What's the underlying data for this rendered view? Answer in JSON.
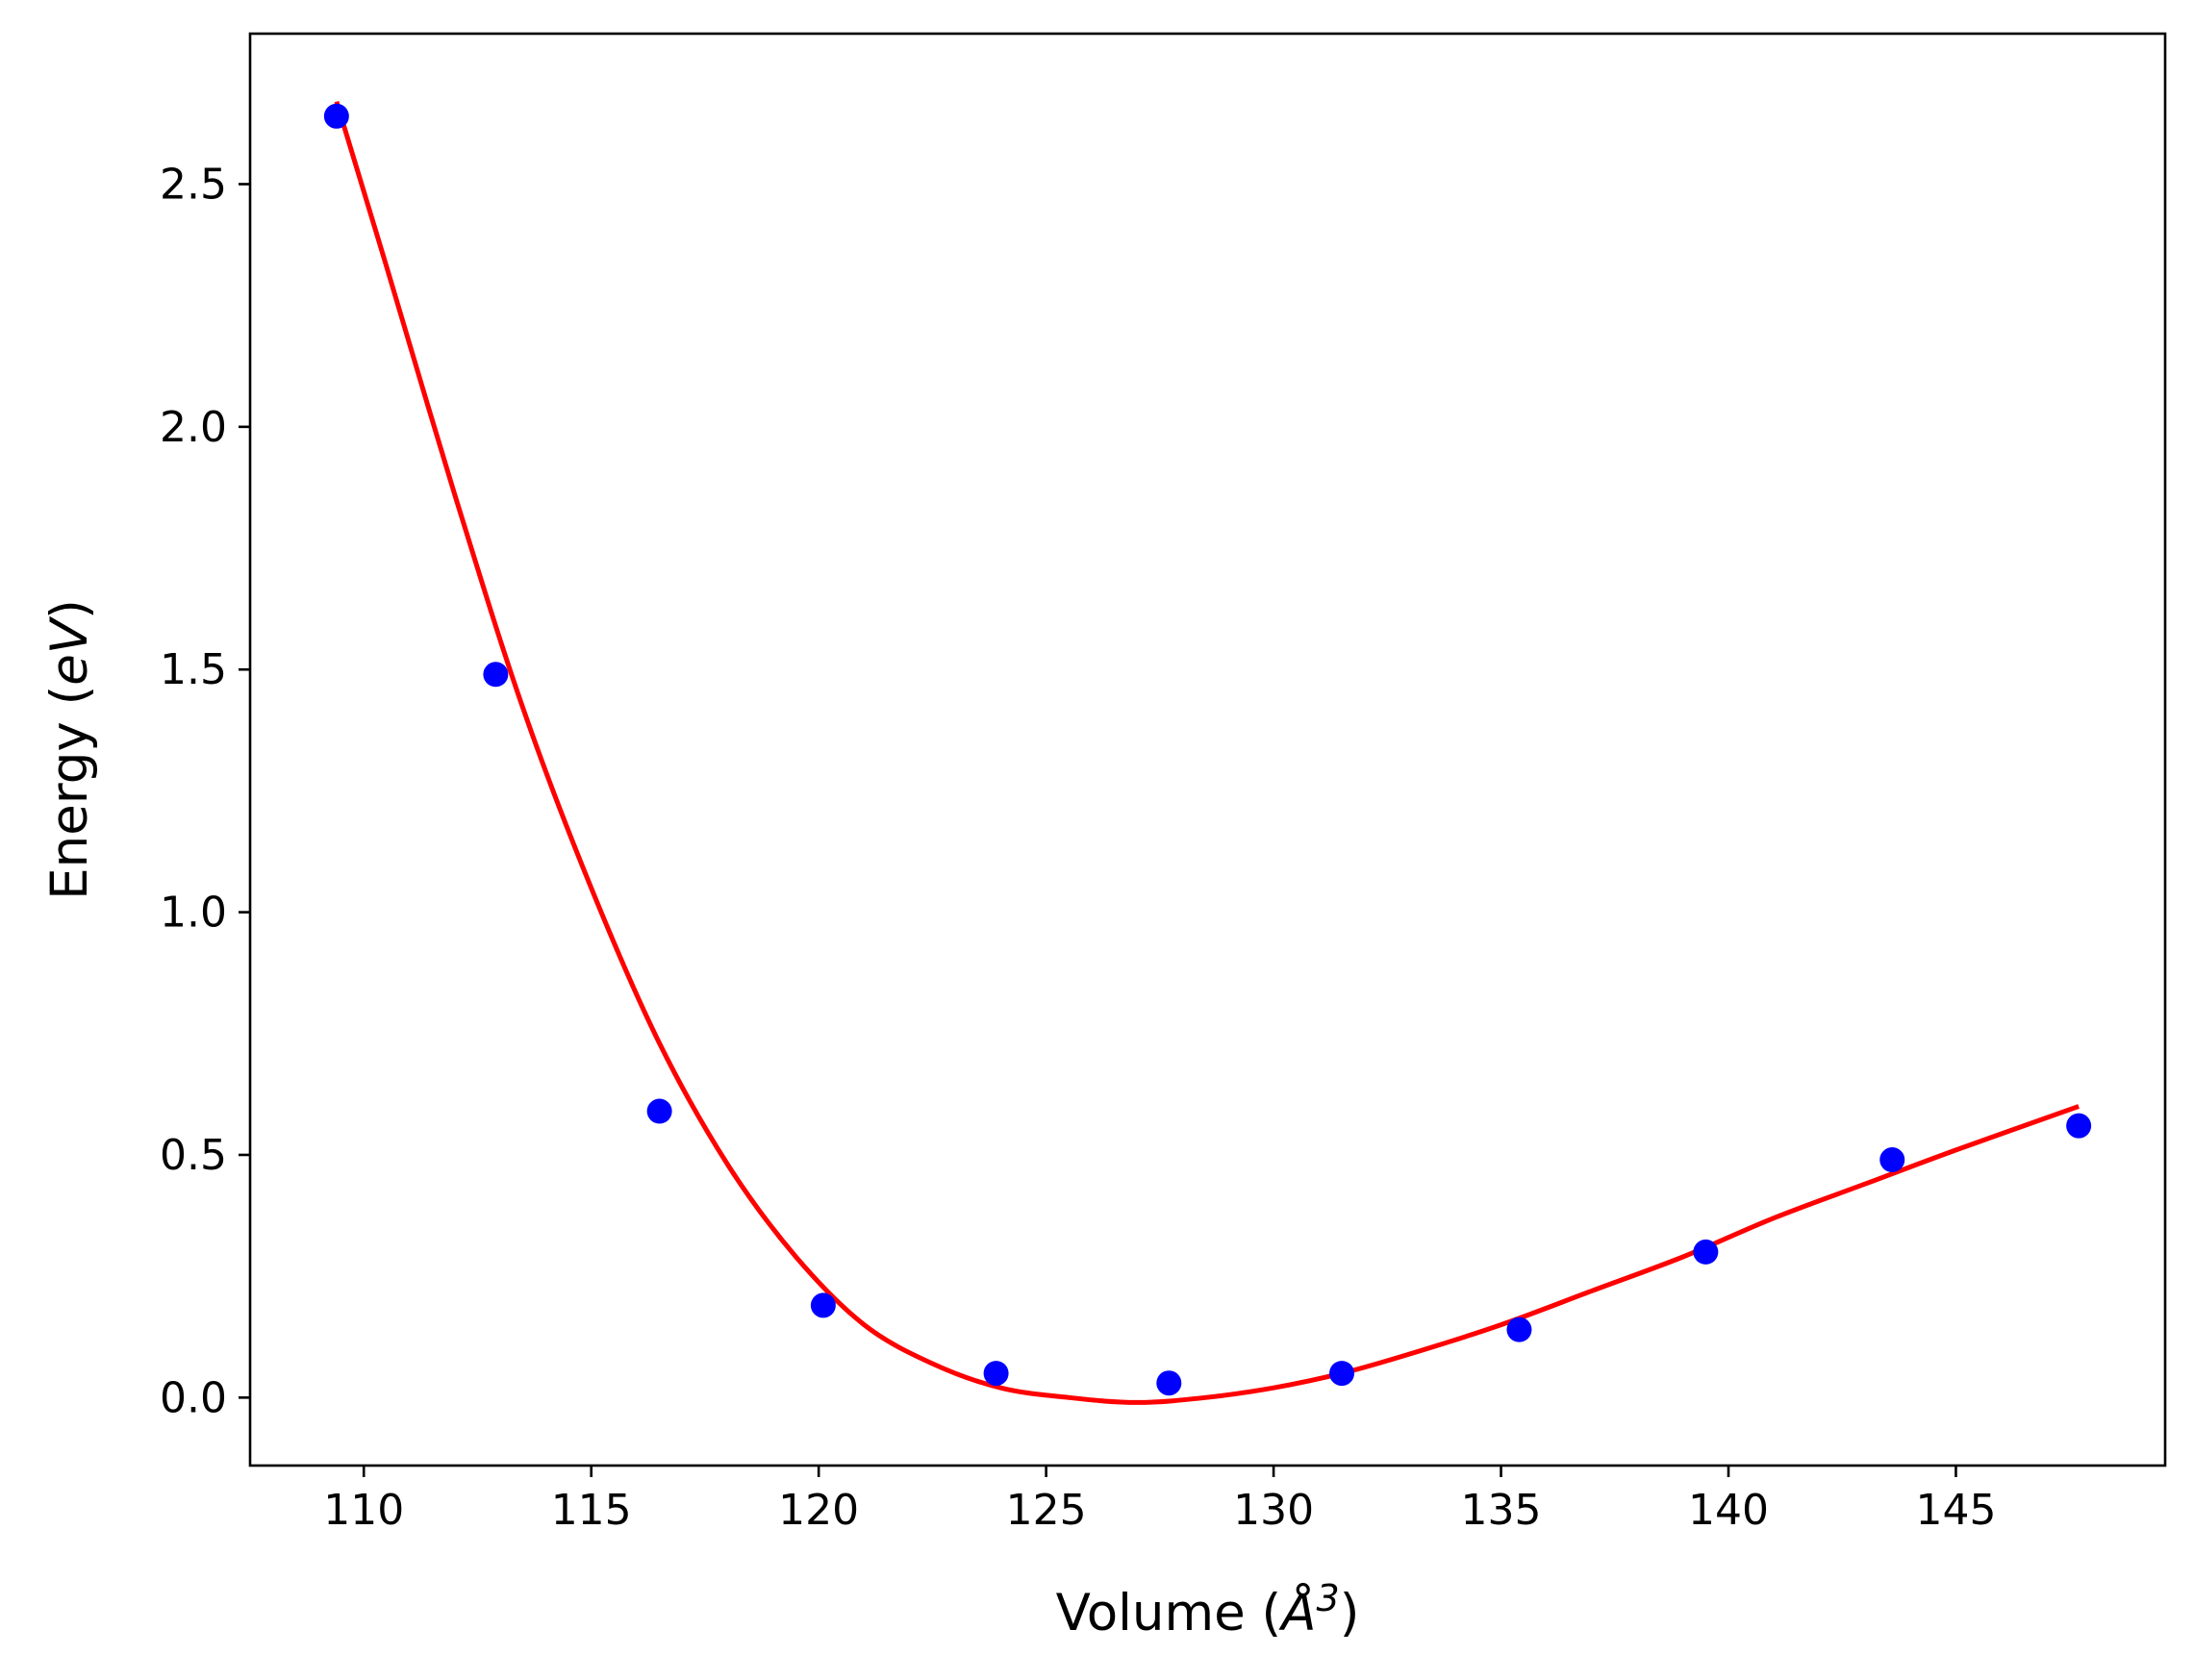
{
  "chart_data": {
    "type": "scatter",
    "xlabel_prefix": "Volume (",
    "xlabel_unit": "Å",
    "xlabel_power": "3",
    "xlabel_suffix": ")",
    "ylabel_prefix": "Energy (",
    "ylabel_unit": "eV",
    "ylabel_suffix": ")",
    "xlim": [
      107.5,
      149.6
    ],
    "ylim": [
      -0.14,
      2.81
    ],
    "x_ticks": [
      {
        "value": 110,
        "label": "110"
      },
      {
        "value": 115,
        "label": "115"
      },
      {
        "value": 120,
        "label": "120"
      },
      {
        "value": 125,
        "label": "125"
      },
      {
        "value": 130,
        "label": "130"
      },
      {
        "value": 135,
        "label": "135"
      },
      {
        "value": 140,
        "label": "140"
      },
      {
        "value": 145,
        "label": "145"
      }
    ],
    "y_ticks": [
      {
        "value": 0.0,
        "label": "0.0"
      },
      {
        "value": 0.5,
        "label": "0.5"
      },
      {
        "value": 1.0,
        "label": "1.0"
      },
      {
        "value": 1.5,
        "label": "1.5"
      },
      {
        "value": 2.0,
        "label": "2.0"
      },
      {
        "value": 2.5,
        "label": "2.5"
      }
    ],
    "grid": false,
    "series": [
      {
        "kind": "points",
        "color": "#0000ff",
        "points": [
          {
            "x": 109.4,
            "y": 2.64
          },
          {
            "x": 112.9,
            "y": 1.49
          },
          {
            "x": 116.5,
            "y": 0.59
          },
          {
            "x": 120.1,
            "y": 0.19
          },
          {
            "x": 123.9,
            "y": 0.05
          },
          {
            "x": 127.7,
            "y": 0.03
          },
          {
            "x": 131.5,
            "y": 0.05
          },
          {
            "x": 135.4,
            "y": 0.14
          },
          {
            "x": 139.5,
            "y": 0.3
          },
          {
            "x": 143.6,
            "y": 0.49
          },
          {
            "x": 147.7,
            "y": 0.56
          }
        ]
      },
      {
        "kind": "fit-curve",
        "color": "#ff0000",
        "points": [
          {
            "x": 109.4,
            "y": 2.67
          },
          {
            "x": 110.5,
            "y": 2.33
          },
          {
            "x": 112.0,
            "y": 1.86
          },
          {
            "x": 113.5,
            "y": 1.42
          },
          {
            "x": 115.0,
            "y": 1.05
          },
          {
            "x": 116.5,
            "y": 0.73
          },
          {
            "x": 118.0,
            "y": 0.48
          },
          {
            "x": 119.5,
            "y": 0.29
          },
          {
            "x": 121.0,
            "y": 0.15
          },
          {
            "x": 122.5,
            "y": 0.07
          },
          {
            "x": 124.0,
            "y": 0.02
          },
          {
            "x": 125.5,
            "y": 0.0
          },
          {
            "x": 127.0,
            "y": -0.01
          },
          {
            "x": 128.5,
            "y": 0.0
          },
          {
            "x": 130.0,
            "y": 0.02
          },
          {
            "x": 131.5,
            "y": 0.05
          },
          {
            "x": 133.0,
            "y": 0.09
          },
          {
            "x": 135.0,
            "y": 0.15
          },
          {
            "x": 137.0,
            "y": 0.22
          },
          {
            "x": 139.0,
            "y": 0.29
          },
          {
            "x": 141.0,
            "y": 0.37
          },
          {
            "x": 143.0,
            "y": 0.44
          },
          {
            "x": 145.0,
            "y": 0.51
          },
          {
            "x": 147.7,
            "y": 0.6
          }
        ]
      }
    ]
  }
}
